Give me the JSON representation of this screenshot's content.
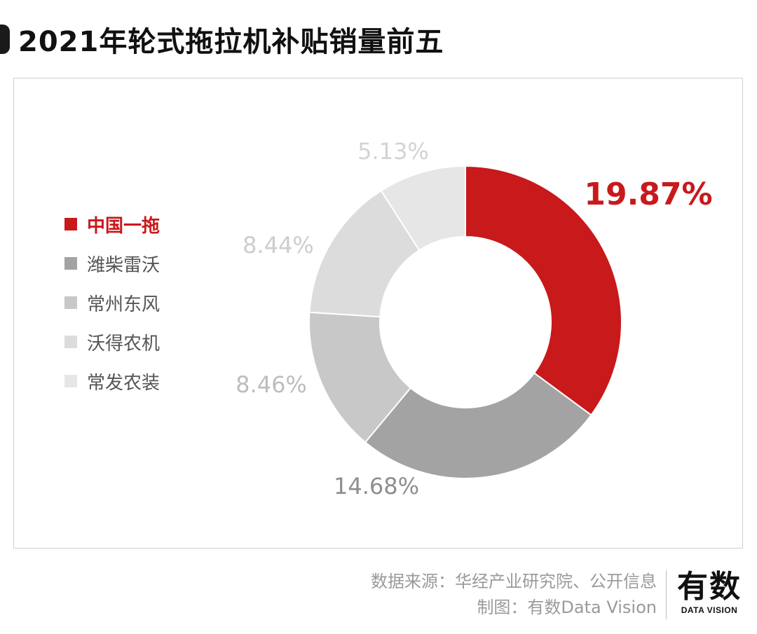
{
  "title": "2021年轮式拖拉机补贴销量前五",
  "chart_data": {
    "type": "pie",
    "donut": true,
    "categories": [
      "中国一拖",
      "潍柴雷沃",
      "常州东风",
      "沃得农机",
      "常发农装"
    ],
    "values": [
      19.87,
      14.68,
      8.46,
      8.44,
      5.13
    ],
    "labels": [
      "19.87%",
      "14.68%",
      "8.46%",
      "8.44%",
      "5.13%"
    ],
    "unit": "%",
    "highlight": "中国一拖",
    "legend_position": "left",
    "colors": [
      "#c8191b",
      "#a3a3a3",
      "#c8c8c8",
      "#dcdcdc",
      "#e6e6e6"
    ],
    "label_colors": [
      "#c8191b",
      "#8e8e8e",
      "#bdbdbd",
      "#cdcdcd",
      "#d3d3d3"
    ]
  },
  "footer": {
    "source": "数据来源：华经产业研究院、公开信息",
    "credit": "制图：有数Data Vision"
  },
  "logo": {
    "text_cn": "有数",
    "text_en": "DATA VISION"
  }
}
